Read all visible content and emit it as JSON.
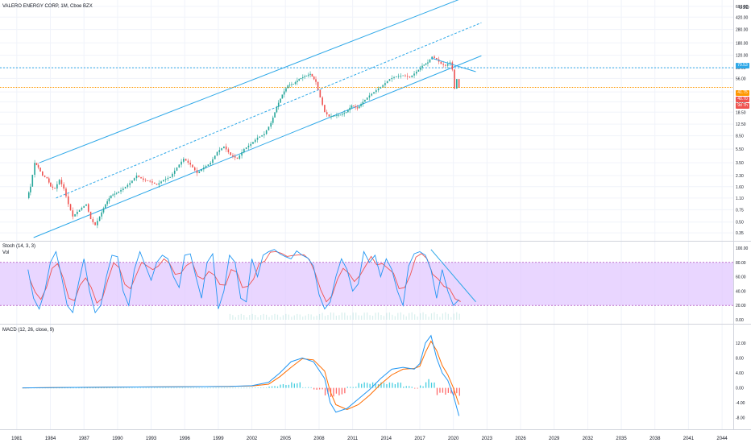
{
  "colors": {
    "bg": "#ffffff",
    "grid": "#f0f3fa",
    "channel": "#2ea8e8",
    "up": "#26a69a",
    "down": "#ef5350",
    "stoch_k": "#2196f3",
    "stoch_d": "#ef5350",
    "stoch_band": "#e1c8ff",
    "stoch_band_border": "#9c27b0",
    "macd_line": "#2196f3",
    "signal_line": "#ff6d00",
    "hist_pos": "#26c6da",
    "hist_neg": "#ff5252",
    "price_line": "#ff9800",
    "resistance": "#2ea8e8",
    "axis_text": "#131722"
  },
  "header": {
    "main_title": "VALERO ENERGY CORP, 1M, Cboe BZX",
    "stoch_title": "Stoch (14, 3, 3)",
    "vol_title": "Vol",
    "macd_title": "MACD (12, 26, close, 9)"
  },
  "price_axis": {
    "currency": "USD",
    "ticks": [
      "600.00",
      "420.00",
      "280.00",
      "180.00",
      "120.00",
      "80.00",
      "56.00",
      "36.00",
      "26.00",
      "18.50",
      "12.50",
      "8.50",
      "5.50",
      "3.50",
      "2.30",
      "1.60",
      "1.10",
      "0.75",
      "0.50",
      "0.35"
    ],
    "badges": [
      {
        "label": "79.53",
        "color": "#2ea8e8"
      },
      {
        "label": "41.75",
        "color": "#ff9800"
      },
      {
        "label": "40.70",
        "color": "#ef5350"
      },
      {
        "label": "9d 7h",
        "color": "#ef5350"
      }
    ]
  },
  "stoch_axis": {
    "ticks": [
      "100.00",
      "80.00",
      "60.00",
      "40.00",
      "20.00",
      "0.00"
    ]
  },
  "macd_axis": {
    "ticks": [
      "12.00",
      "8.00",
      "4.00",
      "0.00",
      "-4.00",
      "-8.00"
    ]
  },
  "time_axis": {
    "ticks": [
      "1981",
      "1984",
      "1987",
      "1990",
      "1993",
      "1996",
      "1999",
      "2002",
      "2005",
      "2008",
      "2011",
      "2014",
      "2017",
      "2020",
      "2023",
      "2026",
      "2029",
      "2032",
      "2035",
      "2038",
      "2041",
      "2044"
    ]
  },
  "chart_data": [
    {
      "type": "line",
      "pane": "price",
      "title": "VALERO ENERGY CORP, 1M, Cboe BZX",
      "scale": "log",
      "ylim": [
        0.3,
        700
      ],
      "xlim": [
        1979.5,
        2045
      ],
      "series": [
        {
          "x": [
            1982.0,
            1982.3,
            1982.7,
            1983.0,
            1983.4,
            1983.8,
            1984.1,
            1984.5,
            1984.9,
            1985.3,
            1985.7,
            1986.1,
            1986.5,
            1986.9,
            1987.3,
            1987.7,
            1988.1,
            1988.5,
            1989.0,
            1989.5,
            1990.0,
            1990.6,
            1991.2,
            1991.8,
            1992.4,
            1993.0,
            1993.6,
            1994.2,
            1994.8,
            1995.4,
            1996.0,
            1996.6,
            1997.2,
            1997.8,
            1998.4,
            1999.0,
            1999.6,
            2000.2,
            2000.8,
            2001.4,
            2002.0,
            2002.6,
            2003.2,
            2003.8,
            2004.3,
            2004.8,
            2005.3,
            2005.8,
            2006.3,
            2006.8,
            2007.3,
            2007.8,
            2008.2,
            2008.6,
            2009.0,
            2009.5,
            2010.0,
            2010.5,
            2011.0,
            2011.5,
            2012.0,
            2012.6,
            2013.2,
            2013.8,
            2014.4,
            2015.0,
            2015.6,
            2016.2,
            2016.8,
            2017.3,
            2017.8,
            2018.2,
            2018.6,
            2019.0,
            2019.4,
            2019.8,
            2020.0,
            2020.2,
            2020.4,
            2020.6
          ],
          "values": [
            1.1,
            1.6,
            3.5,
            3.0,
            2.3,
            2.1,
            1.6,
            1.5,
            2.0,
            1.5,
            0.9,
            0.6,
            0.7,
            0.8,
            0.9,
            0.55,
            0.45,
            0.6,
            0.9,
            1.2,
            1.3,
            1.5,
            1.8,
            2.3,
            2.0,
            1.9,
            1.7,
            2.0,
            2.2,
            3.0,
            4.0,
            3.3,
            2.5,
            3.0,
            3.5,
            5.0,
            6.0,
            4.5,
            4.0,
            5.5,
            6.5,
            8.0,
            9.0,
            13.0,
            22.0,
            33.0,
            45.0,
            47.0,
            55.0,
            60.0,
            65.0,
            50.0,
            30.0,
            18.5,
            16.0,
            16.5,
            17.0,
            18.5,
            23.0,
            21.0,
            26.0,
            32.0,
            38.0,
            45.0,
            55.0,
            60.0,
            62.0,
            58.0,
            70.0,
            85.0,
            95.0,
            115.0,
            105.0,
            90.0,
            85.0,
            95.0,
            75.0,
            40.0,
            55.0,
            41.75
          ]
        }
      ],
      "channel": {
        "upper": {
          "x": [
            1983.0,
            2020.5
          ],
          "y": [
            3.5,
            750
          ]
        },
        "middle": {
          "x": [
            1984.5,
            2022.5
          ],
          "y": [
            1.1,
            350
          ]
        },
        "lower": {
          "x": [
            1982.5,
            2022.5
          ],
          "y": [
            0.3,
            118
          ]
        }
      },
      "trendline": {
        "x": [
          2018.0,
          2022.0
        ],
        "y": [
          110,
          70
        ]
      },
      "horizontal_levels": [
        79.53,
        41.75
      ]
    },
    {
      "type": "line",
      "pane": "stochastic",
      "title": "Stoch (14, 3, 3)",
      "ylim": [
        0,
        100
      ],
      "band": [
        20,
        80
      ],
      "series": [
        {
          "name": "Stoch (14, 3, 3)",
          "x": [
            1982.0,
            1982.5,
            1983.0,
            1983.5,
            1984.0,
            1984.5,
            1985.0,
            1985.5,
            1986.0,
            1986.5,
            1987.0,
            1987.5,
            1988.0,
            1988.5,
            1989.0,
            1989.5,
            1990.0,
            1990.5,
            1991.0,
            1991.5,
            1992.0,
            1992.5,
            1993.0,
            1993.5,
            1994.0,
            1994.5,
            1995.0,
            1995.5,
            1996.0,
            1996.5,
            1997.0,
            1997.5,
            1998.0,
            1998.5,
            1999.0,
            1999.5,
            2000.0,
            2000.5,
            2001.0,
            2001.5,
            2002.0,
            2002.5,
            2003.0,
            2003.5,
            2004.0,
            2004.5,
            2005.0,
            2005.5,
            2006.0,
            2006.5,
            2007.0,
            2007.5,
            2008.0,
            2008.5,
            2009.0,
            2009.5,
            2010.0,
            2010.5,
            2011.0,
            2011.5,
            2012.0,
            2012.5,
            2013.0,
            2013.5,
            2014.0,
            2014.5,
            2015.0,
            2015.5,
            2016.0,
            2016.5,
            2017.0,
            2017.5,
            2018.0,
            2018.5,
            2019.0,
            2019.5,
            2020.0,
            2020.5
          ],
          "values": [
            70,
            30,
            15,
            40,
            80,
            95,
            60,
            20,
            10,
            50,
            85,
            40,
            10,
            20,
            60,
            90,
            88,
            40,
            20,
            70,
            95,
            75,
            55,
            80,
            90,
            85,
            60,
            45,
            90,
            92,
            60,
            30,
            80,
            92,
            15,
            40,
            90,
            80,
            30,
            25,
            85,
            60,
            90,
            95,
            98,
            92,
            88,
            85,
            96,
            90,
            86,
            75,
            35,
            15,
            25,
            60,
            85,
            70,
            40,
            50,
            95,
            80,
            90,
            60,
            85,
            70,
            40,
            20,
            75,
            92,
            95,
            90,
            70,
            30,
            70,
            40,
            20,
            28
          ]
        }
      ],
      "trendline": {
        "x": [
          2018.0,
          2022.0
        ],
        "y": [
          98,
          25
        ]
      }
    },
    {
      "type": "line",
      "pane": "macd",
      "title": "MACD (12, 26, close, 9)",
      "ylim": [
        -10,
        15
      ],
      "x": [
        1981.5,
        1985.0,
        1990.0,
        1995.0,
        2000.0,
        2002.0,
        2003.5,
        2004.5,
        2005.5,
        2006.5,
        2007.5,
        2008.5,
        2009.0,
        2009.5,
        2010.5,
        2011.5,
        2012.5,
        2013.5,
        2014.5,
        2015.5,
        2016.5,
        2017.0,
        2017.5,
        2018.0,
        2018.5,
        2019.0,
        2019.5,
        2020.0,
        2020.5
      ],
      "series": [
        {
          "name": "MACD",
          "values": [
            0,
            0.1,
            0.2,
            0.3,
            0.4,
            0.6,
            1.5,
            4.0,
            7.0,
            8.0,
            7.0,
            2.5,
            -4.0,
            -6.5,
            -5.5,
            -3.0,
            -0.5,
            2.5,
            5.0,
            5.5,
            5.0,
            6.5,
            12.0,
            14.0,
            8.0,
            4.0,
            2.0,
            -2.0,
            -7.5
          ]
        },
        {
          "name": "Signal",
          "values": [
            0,
            0.1,
            0.2,
            0.3,
            0.4,
            0.5,
            1.0,
            3.0,
            5.5,
            7.8,
            7.5,
            4.5,
            -1.0,
            -4.5,
            -5.8,
            -4.5,
            -2.0,
            1.0,
            3.5,
            5.0,
            5.2,
            5.8,
            9.5,
            12.5,
            10.0,
            6.0,
            3.5,
            0.0,
            -4.5
          ]
        }
      ],
      "histogram": [
        0,
        0,
        0,
        0,
        0,
        0.1,
        0.5,
        1.0,
        1.5,
        0.2,
        -0.5,
        -2.0,
        -3.0,
        -2.0,
        0.3,
        1.5,
        1.5,
        1.5,
        1.5,
        0.5,
        -0.2,
        0.7,
        2.5,
        1.5,
        -2.0,
        -2.0,
        -1.5,
        -2.0,
        -3.0
      ]
    }
  ]
}
